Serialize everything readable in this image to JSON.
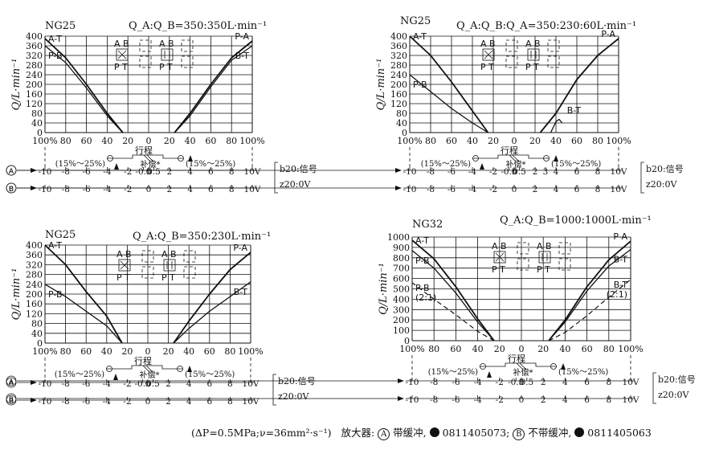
{
  "chart_data": [
    {
      "type": "line",
      "model": "NG25",
      "ratio": "Q_A:Q_B=350:350L·min⁻¹",
      "ylabel": "Q/L·min⁻¹",
      "ylim": [
        0,
        400
      ],
      "y_ticks": [
        "400",
        "360",
        "320",
        "280",
        "240",
        "200",
        "160",
        "120",
        "80",
        "40",
        "0"
      ],
      "x_ticks": [
        "100%",
        "80",
        "60",
        "40",
        "20",
        "0",
        "20",
        "40",
        "60",
        "80",
        "100%"
      ],
      "stroke_label": "行程",
      "compensation_label": "补偿*",
      "range_left": "(15%～25%)",
      "range_right": "(15%～25%)",
      "scale_a": [
        "-10",
        "-8",
        "-6",
        "-4",
        "-2",
        "-0.5",
        "0",
        "0.5",
        "2",
        "4",
        "6",
        "8",
        "10V"
      ],
      "scale_b": [
        "-10",
        "-8",
        "-6",
        "-4",
        "-2",
        "0",
        "2",
        "4",
        "6",
        "8",
        "10V"
      ],
      "signal_a": "b20:信号",
      "signal_b": "z20:0V",
      "symbols": [
        {
          "top": "A B",
          "bottom": "P T",
          "kind": "cross"
        },
        {
          "top": "",
          "bottom": "",
          "kind": "closed"
        },
        {
          "top": "A B",
          "bottom": "P T",
          "kind": "parallel"
        },
        {
          "top": "",
          "bottom": "",
          "kind": "closed2"
        }
      ],
      "series": [
        {
          "name": "P-A",
          "side": "right",
          "x": [
            25,
            40,
            60,
            80,
            100
          ],
          "y": [
            0,
            80,
            200,
            310,
            380
          ]
        },
        {
          "name": "B-T",
          "side": "right",
          "x": [
            25,
            40,
            60,
            80,
            100
          ],
          "y": [
            0,
            70,
            190,
            300,
            360
          ]
        },
        {
          "name": "A-T",
          "side": "left",
          "x": [
            25,
            40,
            60,
            80,
            100
          ],
          "y": [
            0,
            80,
            200,
            310,
            390
          ]
        },
        {
          "name": "P-B",
          "side": "left",
          "x": [
            25,
            40,
            60,
            80,
            100
          ],
          "y": [
            0,
            70,
            185,
            290,
            360
          ]
        }
      ],
      "label_positions": {
        "P-A": "top-right",
        "B-T": "right",
        "A-T": "top-left",
        "P-B": "left"
      }
    },
    {
      "type": "line",
      "model": "NG25",
      "ratio": "Q_A:Q_B:Q_A=350:230:60L·min⁻¹",
      "ylabel": "Q/L·min⁻¹",
      "ylim": [
        0,
        400
      ],
      "y_ticks": [
        "400",
        "360",
        "320",
        "280",
        "240",
        "200",
        "160",
        "120",
        "80",
        "40",
        "0"
      ],
      "x_ticks": [
        "100%",
        "80",
        "60",
        "40",
        "20",
        "0",
        "20",
        "40",
        "60",
        "80",
        "100%"
      ],
      "stroke_label": "行程",
      "compensation_label": "补偿*",
      "range_left": "(15%～25%)",
      "range_right": "(15%～25%)",
      "scale_a": [
        "-10",
        "-8",
        "-6",
        "-4",
        "-2",
        "-0.5",
        "0",
        "0.5",
        "2",
        "3",
        "4",
        "6",
        "8",
        "10V"
      ],
      "scale_b": [
        "-10",
        "-8",
        "-6",
        "-4",
        "-2",
        "0",
        "2",
        "4",
        "6",
        "8",
        "10V"
      ],
      "signal_a": "b20:信号",
      "signal_b": "z20:0V",
      "symbols": [
        {
          "top": "A B",
          "bottom": "P T",
          "kind": "cross"
        },
        {
          "top": "",
          "bottom": "",
          "kind": "closed"
        },
        {
          "top": "A B",
          "bottom": "P T",
          "kind": "parallel"
        },
        {
          "top": "",
          "bottom": "",
          "kind": "closed2"
        }
      ],
      "series": [
        {
          "name": "P-A",
          "side": "right",
          "x": [
            25,
            40,
            60,
            80,
            100
          ],
          "y": [
            0,
            80,
            220,
            320,
            390
          ]
        },
        {
          "name": "B-T",
          "side": "right",
          "x": [
            35,
            40,
            43,
            46
          ],
          "y": [
            0,
            45,
            55,
            40
          ]
        },
        {
          "name": "A-T",
          "side": "left",
          "x": [
            25,
            40,
            60,
            80,
            100
          ],
          "y": [
            0,
            90,
            210,
            320,
            400
          ]
        },
        {
          "name": "P-B",
          "side": "left",
          "x": [
            25,
            40,
            60,
            80,
            100
          ],
          "y": [
            0,
            40,
            100,
            170,
            240
          ]
        }
      ],
      "label_positions": {
        "P-A": "top-right",
        "B-T": "right",
        "A-T": "top-left",
        "P-B": "left"
      }
    },
    {
      "type": "line",
      "model": "NG25",
      "ratio": "Q_A:Q_B=350:230L·min⁻¹",
      "ylabel": "Q/L·min⁻¹",
      "ylim": [
        0,
        400
      ],
      "y_ticks": [
        "400",
        "360",
        "320",
        "280",
        "240",
        "200",
        "160",
        "120",
        "80",
        "40",
        "0"
      ],
      "x_ticks": [
        "100%",
        "80",
        "60",
        "40",
        "20",
        "0",
        "20",
        "40",
        "60",
        "80",
        "100%"
      ],
      "stroke_label": "行程",
      "compensation_label": "补偿*",
      "range_left": "(15%～25%)",
      "range_right": "(15%～25%)",
      "scale_a": [
        "-10",
        "-8",
        "-6",
        "-4",
        "-2",
        "-0.5",
        "0",
        "0.5",
        "2",
        "4",
        "6",
        "8",
        "10V"
      ],
      "scale_b": [
        "-10",
        "-8",
        "-6",
        "-4",
        "-2",
        "0",
        "2",
        "4",
        "6",
        "8",
        "10V"
      ],
      "signal_a": "b20:信号",
      "signal_b": "z20:0V",
      "symbols": [
        {
          "top": "A B",
          "bottom": "P T",
          "kind": "cross"
        },
        {
          "top": "",
          "bottom": "",
          "kind": "closed"
        },
        {
          "top": "A B",
          "bottom": "P T",
          "kind": "parallel"
        },
        {
          "top": "",
          "bottom": "",
          "kind": "closed2"
        }
      ],
      "series": [
        {
          "name": "P-A",
          "side": "right",
          "x": [
            25,
            40,
            60,
            80,
            100
          ],
          "y": [
            0,
            90,
            200,
            300,
            370
          ]
        },
        {
          "name": "B-T",
          "side": "right",
          "x": [
            25,
            40,
            60,
            80,
            100
          ],
          "y": [
            0,
            60,
            130,
            190,
            250
          ]
        },
        {
          "name": "A-T",
          "side": "left",
          "x": [
            25,
            40,
            60,
            80,
            100
          ],
          "y": [
            0,
            110,
            210,
            320,
            400
          ]
        },
        {
          "name": "P-B",
          "side": "left",
          "x": [
            25,
            40,
            60,
            80,
            100
          ],
          "y": [
            0,
            70,
            130,
            190,
            240
          ]
        }
      ],
      "label_positions": {
        "P-A": "top-right",
        "B-T": "right",
        "A-T": "left",
        "P-B": "left"
      }
    },
    {
      "type": "line",
      "model": "NG32",
      "ratio": "Q_A:Q_B=1000:1000L·min⁻¹",
      "ylabel": "Q/L·min⁻¹",
      "ylim": [
        0,
        1000
      ],
      "y_ticks": [
        "1000",
        "900",
        "800",
        "700",
        "600",
        "500",
        "400",
        "300",
        "200",
        "100",
        "0"
      ],
      "x_ticks": [
        "100%",
        "80",
        "60",
        "40",
        "20",
        "0",
        "20",
        "40",
        "60",
        "80",
        "100%"
      ],
      "stroke_label": "行程",
      "compensation_label": "补偿*",
      "range_left": "(15%～25%)",
      "range_right": "(15%～25%)",
      "scale_a": [
        "-10",
        "-8",
        "-6",
        "-4",
        "-2",
        "-0.5",
        "0",
        "0.5",
        "2",
        "4",
        "6",
        "8",
        "10V"
      ],
      "scale_b": [
        "-10",
        "-8",
        "-6",
        "-4",
        "-2",
        "0",
        "2",
        "4",
        "6",
        "8",
        "10V"
      ],
      "signal_a": "b20:信号",
      "signal_b": "z20:0V",
      "symbols": [
        {
          "top": "A B",
          "bottom": "P T",
          "kind": "cross"
        },
        {
          "top": "",
          "bottom": "",
          "kind": "closed"
        },
        {
          "top": "A B",
          "bottom": "P T",
          "kind": "parallel"
        },
        {
          "top": "",
          "bottom": "",
          "kind": "closed2"
        }
      ],
      "series": [
        {
          "name": "P-A",
          "side": "right",
          "x": [
            25,
            40,
            60,
            80,
            100
          ],
          "y": [
            0,
            200,
            520,
            780,
            960
          ]
        },
        {
          "name": "B-T",
          "side": "right",
          "x": [
            25,
            40,
            60,
            80,
            100
          ],
          "y": [
            0,
            180,
            480,
            720,
            880
          ]
        },
        {
          "name": "B-T(2:1)",
          "side": "right",
          "dashed": true,
          "x": [
            25,
            40,
            60,
            80,
            100
          ],
          "y": [
            0,
            80,
            240,
            420,
            590
          ]
        },
        {
          "name": "A-T",
          "side": "left",
          "x": [
            25,
            40,
            60,
            80,
            100
          ],
          "y": [
            0,
            210,
            520,
            790,
            970
          ]
        },
        {
          "name": "P-B",
          "side": "left",
          "x": [
            25,
            40,
            60,
            80,
            100
          ],
          "y": [
            0,
            180,
            460,
            700,
            870
          ]
        },
        {
          "name": "P-B(2:1)",
          "side": "left",
          "dashed": true,
          "x": [
            25,
            40,
            60,
            80,
            100
          ],
          "y": [
            0,
            90,
            250,
            400,
            560
          ]
        }
      ],
      "label_positions": {
        "P-A": "top-right",
        "B-T": "right",
        "A-T": "top-left",
        "P-B": "left"
      }
    }
  ],
  "footer": {
    "conditions": "(ΔP=0.5MPa;ν=36mm²·s⁻¹)",
    "amplifier_label": "放大器:",
    "a_marker": "A",
    "a_text": "带缓冲,",
    "a_code": "0811405073;",
    "b_marker": "B",
    "b_text": "不带缓冲,",
    "b_code": "0811405063"
  }
}
